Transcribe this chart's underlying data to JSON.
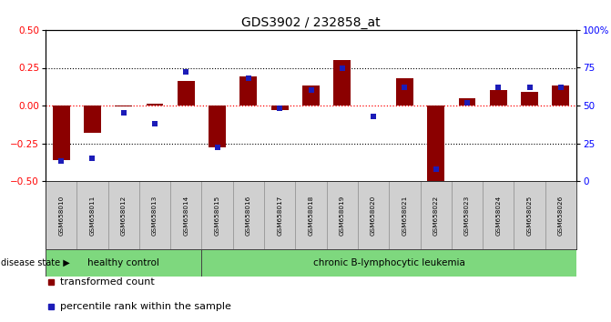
{
  "title": "GDS3902 / 232858_at",
  "samples": [
    "GSM658010",
    "GSM658011",
    "GSM658012",
    "GSM658013",
    "GSM658014",
    "GSM658015",
    "GSM658016",
    "GSM658017",
    "GSM658018",
    "GSM658019",
    "GSM658020",
    "GSM658021",
    "GSM658022",
    "GSM658023",
    "GSM658024",
    "GSM658025",
    "GSM658026"
  ],
  "red_bars": [
    -0.36,
    -0.18,
    -0.005,
    0.015,
    0.16,
    -0.28,
    0.19,
    -0.03,
    0.13,
    0.3,
    0.0,
    0.18,
    -0.52,
    0.05,
    0.1,
    0.09,
    0.13
  ],
  "blue_dots_pct": [
    13,
    15,
    45,
    38,
    72,
    22,
    68,
    48,
    60,
    75,
    43,
    62,
    8,
    52,
    62,
    62,
    62
  ],
  "ylim_left": [
    -0.5,
    0.5
  ],
  "ylim_right": [
    0,
    100
  ],
  "yticks_left": [
    -0.5,
    -0.25,
    0.0,
    0.25,
    0.5
  ],
  "yticks_right": [
    0,
    25,
    50,
    75,
    100
  ],
  "hlines_dotted": [
    -0.25,
    0.25
  ],
  "hline_red": 0.0,
  "healthy_count": 5,
  "group1_label": "healthy control",
  "group2_label": "chronic B-lymphocytic leukemia",
  "disease_state_label": "disease state",
  "legend_red": "transformed count",
  "legend_blue": "percentile rank within the sample",
  "bar_color": "#8B0000",
  "dot_color": "#1C1CB8",
  "green_color": "#7ED87E",
  "label_bg": "#D0D0D0"
}
